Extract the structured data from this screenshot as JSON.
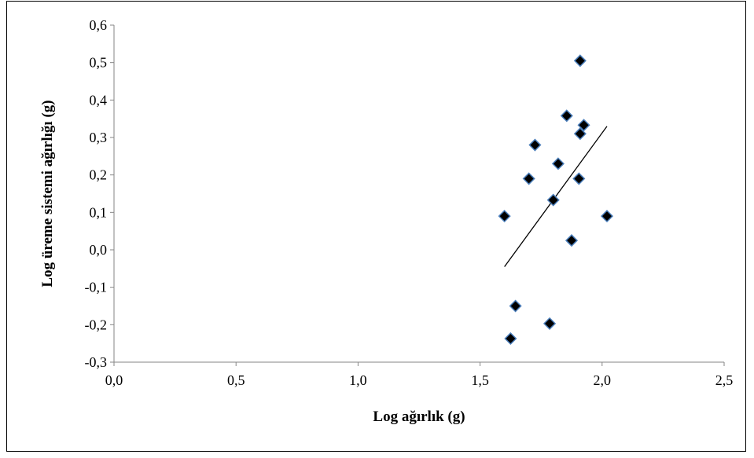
{
  "chart_data": {
    "type": "scatter",
    "title": "",
    "xlabel": "Log ağırlık (g)",
    "ylabel": "Log üreme sistemi ağırlığı (g)",
    "xlim": [
      0.0,
      2.5
    ],
    "ylim": [
      -0.3,
      0.6
    ],
    "x_ticks": [
      "0,0",
      "0,5",
      "1,0",
      "1,5",
      "2,0",
      "2,5"
    ],
    "y_ticks": [
      "-0,3",
      "-0,2",
      "-0,1",
      "0,0",
      "0,1",
      "0,2",
      "0,3",
      "0,4",
      "0,5",
      "0,6"
    ],
    "x_tick_values": [
      0.0,
      0.5,
      1.0,
      1.5,
      2.0,
      2.5
    ],
    "y_tick_values": [
      -0.3,
      -0.2,
      -0.1,
      0.0,
      0.1,
      0.2,
      0.3,
      0.4,
      0.5,
      0.6
    ],
    "grid": false,
    "legend": "none",
    "marker": "diamond",
    "marker_color": "#000000",
    "marker_edge_color": "#4a7ebb",
    "series": [
      {
        "points": [
          {
            "x": 1.6,
            "y": 0.09
          },
          {
            "x": 1.625,
            "y": -0.237
          },
          {
            "x": 1.645,
            "y": -0.15
          },
          {
            "x": 1.7,
            "y": 0.19
          },
          {
            "x": 1.725,
            "y": 0.28
          },
          {
            "x": 1.785,
            "y": -0.197
          },
          {
            "x": 1.8,
            "y": 0.133
          },
          {
            "x": 1.82,
            "y": 0.23
          },
          {
            "x": 1.855,
            "y": 0.358
          },
          {
            "x": 1.875,
            "y": 0.025
          },
          {
            "x": 1.905,
            "y": 0.19
          },
          {
            "x": 1.91,
            "y": 0.31
          },
          {
            "x": 1.91,
            "y": 0.505
          },
          {
            "x": 1.925,
            "y": 0.333
          },
          {
            "x": 2.02,
            "y": 0.09
          }
        ]
      }
    ],
    "trendline": {
      "x": [
        1.6,
        2.02
      ],
      "y": [
        -0.045,
        0.33
      ],
      "color": "#000000"
    }
  }
}
